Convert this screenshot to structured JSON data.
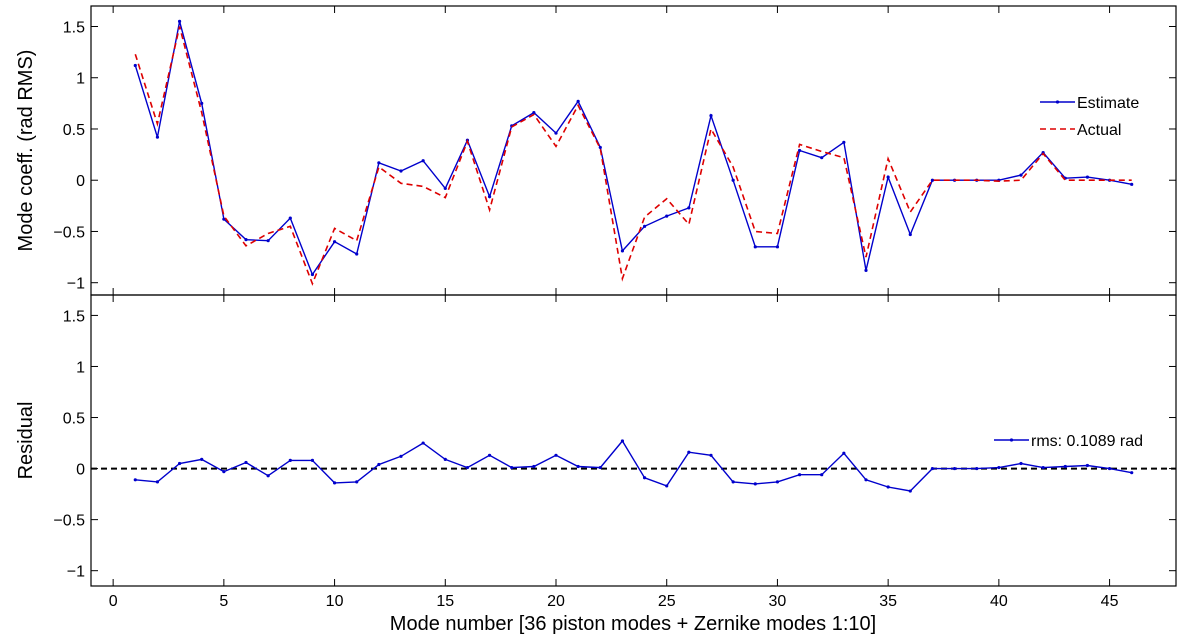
{
  "chart_data": [
    {
      "type": "line",
      "xlabel": "",
      "ylabel": "Mode coeff. (rad RMS)",
      "xlim": [
        -1,
        48
      ],
      "ylim": [
        -1.12,
        1.7
      ],
      "xticks": [
        0,
        5,
        10,
        15,
        20,
        25,
        30,
        35,
        40,
        45
      ],
      "yticks": [
        -1,
        -0.5,
        0,
        0.5,
        1,
        1.5
      ],
      "ytick_labels": [
        "−1",
        "−0.5",
        "0",
        "0.5",
        "1",
        "1.5"
      ],
      "legend_position": "right",
      "x": [
        1,
        2,
        3,
        4,
        5,
        6,
        7,
        8,
        9,
        10,
        11,
        12,
        13,
        14,
        15,
        16,
        17,
        18,
        19,
        20,
        21,
        22,
        23,
        24,
        25,
        26,
        27,
        28,
        29,
        30,
        31,
        32,
        33,
        34,
        35,
        36,
        37,
        38,
        39,
        40,
        41,
        42,
        43,
        44,
        45,
        46
      ],
      "series": [
        {
          "name": "Estimate",
          "color": "#0000cc",
          "style": "solid-dot",
          "values": [
            1.12,
            0.42,
            1.55,
            0.75,
            -0.38,
            -0.58,
            -0.59,
            -0.37,
            -0.92,
            -0.6,
            -0.72,
            0.17,
            0.09,
            0.19,
            -0.08,
            0.39,
            -0.16,
            0.53,
            0.66,
            0.46,
            0.77,
            0.32,
            -0.69,
            -0.45,
            -0.35,
            -0.27,
            0.63,
            0.0,
            -0.65,
            -0.65,
            0.29,
            0.22,
            0.37,
            -0.88,
            0.03,
            -0.53,
            0.0,
            0.0,
            0.0,
            0.0,
            0.05,
            0.27,
            0.02,
            0.03,
            0.0,
            -0.04
          ]
        },
        {
          "name": "Actual",
          "color": "#dd0000",
          "style": "dashed",
          "values": [
            1.23,
            0.55,
            1.5,
            0.66,
            -0.35,
            -0.64,
            -0.52,
            -0.45,
            -1.01,
            -0.47,
            -0.59,
            0.13,
            -0.03,
            -0.06,
            -0.17,
            0.38,
            -0.29,
            0.52,
            0.64,
            0.33,
            0.73,
            0.31,
            -0.96,
            -0.36,
            -0.18,
            -0.43,
            0.5,
            0.13,
            -0.5,
            -0.52,
            0.35,
            0.28,
            0.22,
            -0.75,
            0.21,
            -0.31,
            0.0,
            0.0,
            0.0,
            -0.01,
            0.0,
            0.26,
            0.0,
            0.0,
            0.0,
            0.0
          ]
        }
      ]
    },
    {
      "type": "line",
      "xlabel": "Mode number [36 piston modes + Zernike modes 1:10]",
      "ylabel": "Residual",
      "xlim": [
        -1,
        48
      ],
      "ylim": [
        -1.15,
        1.7
      ],
      "xticks": [
        0,
        5,
        10,
        15,
        20,
        25,
        30,
        35,
        40,
        45
      ],
      "yticks": [
        -1,
        -0.5,
        0,
        0.5,
        1,
        1.5
      ],
      "ytick_labels": [
        "−1",
        "−0.5",
        "0",
        "0.5",
        "1",
        "1.5"
      ],
      "legend_position": "right",
      "zero_line": {
        "y": 0,
        "color": "#000000",
        "style": "dashed"
      },
      "x": [
        1,
        2,
        3,
        4,
        5,
        6,
        7,
        8,
        9,
        10,
        11,
        12,
        13,
        14,
        15,
        16,
        17,
        18,
        19,
        20,
        21,
        22,
        23,
        24,
        25,
        26,
        27,
        28,
        29,
        30,
        31,
        32,
        33,
        34,
        35,
        36,
        37,
        38,
        39,
        40,
        41,
        42,
        43,
        44,
        45,
        46
      ],
      "series": [
        {
          "name": "rms: 0.1089 rad",
          "color": "#0000cc",
          "style": "solid-dot",
          "values": [
            -0.11,
            -0.13,
            0.05,
            0.09,
            -0.03,
            0.06,
            -0.07,
            0.08,
            0.08,
            -0.14,
            -0.13,
            0.04,
            0.12,
            0.25,
            0.09,
            0.01,
            0.13,
            0.01,
            0.02,
            0.13,
            0.02,
            0.01,
            0.27,
            -0.09,
            -0.17,
            0.16,
            0.13,
            -0.13,
            -0.15,
            -0.13,
            -0.06,
            -0.06,
            0.15,
            -0.11,
            -0.18,
            -0.22,
            0.0,
            0.0,
            0.0,
            0.01,
            0.05,
            0.01,
            0.02,
            0.03,
            0.0,
            -0.04
          ]
        }
      ]
    }
  ]
}
